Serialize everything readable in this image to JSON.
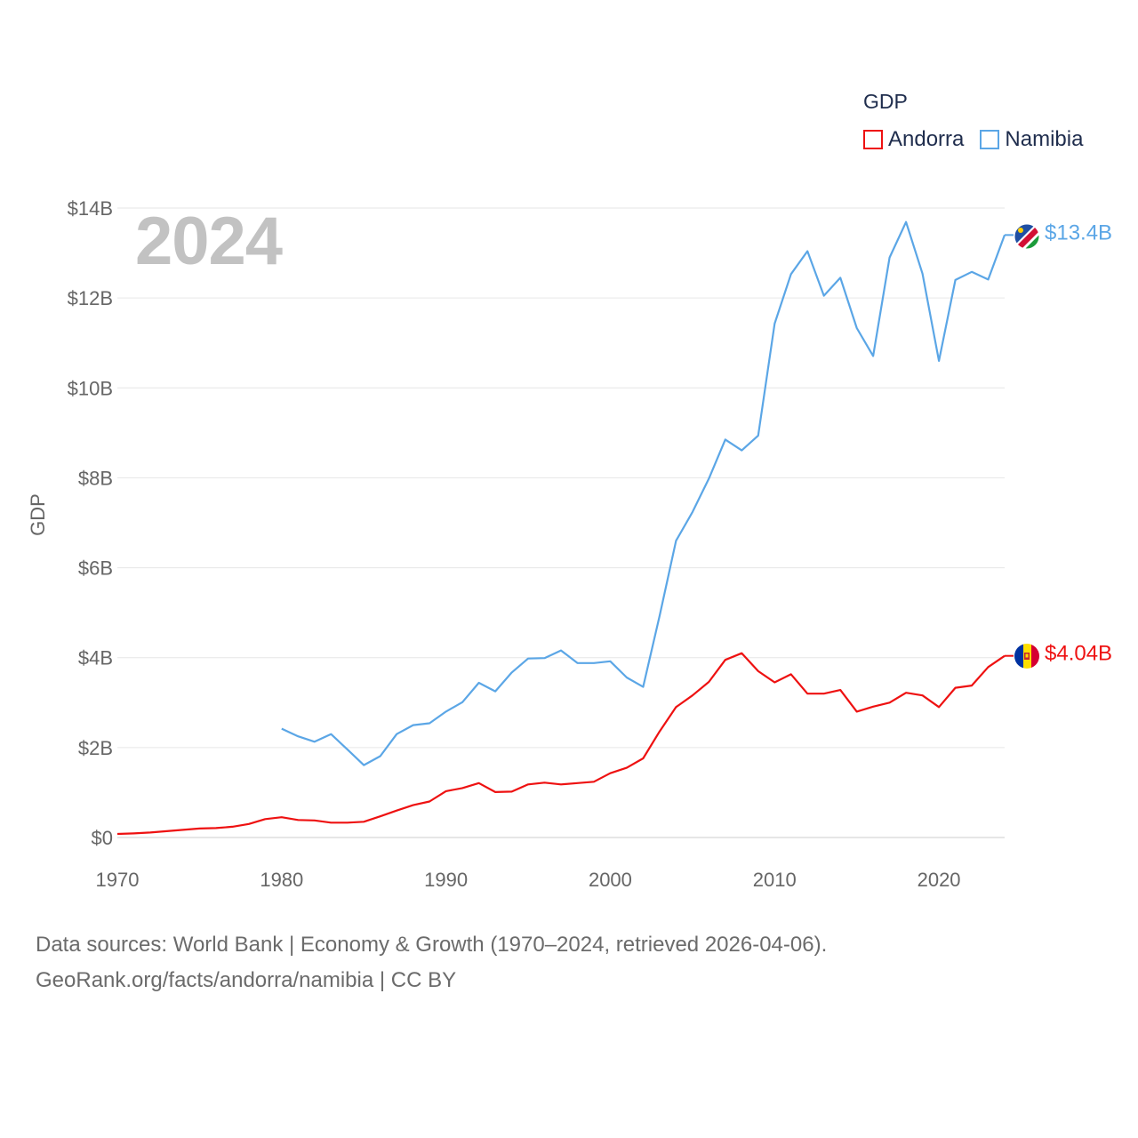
{
  "legend": {
    "title": "GDP",
    "items": [
      {
        "label": "Andorra",
        "color": "#ee1111"
      },
      {
        "label": "Namibia",
        "color": "#5ba6e6"
      }
    ]
  },
  "year_label": "2024",
  "footer": {
    "line1": "Data sources: World Bank | Economy & Growth (1970–2024, retrieved 2026-04-06).",
    "line2": "GeoRank.org/facts/andorra/namibia | CC BY"
  },
  "chart_data": {
    "type": "line",
    "title": "",
    "xlabel": "",
    "ylabel": "GDP",
    "xlim": [
      1970,
      2024
    ],
    "ylim": [
      0,
      14
    ],
    "y_unit": "billion USD",
    "x_ticks": [
      "1970",
      "1980",
      "1990",
      "2000",
      "2010",
      "2020"
    ],
    "x_tick_values": [
      1970,
      1980,
      1990,
      2000,
      2010,
      2020
    ],
    "y_ticks": [
      "$0",
      "$2B",
      "$4B",
      "$6B",
      "$8B",
      "$10B",
      "$12B",
      "$14B"
    ],
    "y_tick_values": [
      0,
      2,
      4,
      6,
      8,
      10,
      12,
      14
    ],
    "grid": true,
    "legend_position": "top-right",
    "series": [
      {
        "name": "Andorra",
        "color": "#ee1111",
        "end_label": "$4.04B",
        "x": [
          1970,
          1971,
          1972,
          1973,
          1974,
          1975,
          1976,
          1977,
          1978,
          1979,
          1980,
          1981,
          1982,
          1983,
          1984,
          1985,
          1986,
          1987,
          1988,
          1989,
          1990,
          1991,
          1992,
          1993,
          1994,
          1995,
          1996,
          1997,
          1998,
          1999,
          2000,
          2001,
          2002,
          2003,
          2004,
          2005,
          2006,
          2007,
          2008,
          2009,
          2010,
          2011,
          2012,
          2013,
          2014,
          2015,
          2016,
          2017,
          2018,
          2019,
          2020,
          2021,
          2022,
          2023,
          2024
        ],
        "values": [
          0.08,
          0.09,
          0.11,
          0.14,
          0.17,
          0.2,
          0.21,
          0.24,
          0.3,
          0.41,
          0.45,
          0.39,
          0.38,
          0.33,
          0.33,
          0.35,
          0.47,
          0.6,
          0.72,
          0.8,
          1.03,
          1.1,
          1.21,
          1.01,
          1.02,
          1.18,
          1.22,
          1.18,
          1.21,
          1.24,
          1.43,
          1.55,
          1.76,
          2.36,
          2.9,
          3.16,
          3.46,
          3.95,
          4.1,
          3.7,
          3.45,
          3.63,
          3.2,
          3.2,
          3.28,
          2.8,
          2.91,
          3.0,
          3.22,
          3.16,
          2.9,
          3.33,
          3.38,
          3.79,
          4.04
        ]
      },
      {
        "name": "Namibia",
        "color": "#5ba6e6",
        "end_label": "$13.4B",
        "x": [
          1980,
          1981,
          1982,
          1983,
          1984,
          1985,
          1986,
          1987,
          1988,
          1989,
          1990,
          1991,
          1992,
          1993,
          1994,
          1995,
          1996,
          1997,
          1998,
          1999,
          2000,
          2001,
          2002,
          2003,
          2004,
          2005,
          2006,
          2007,
          2008,
          2009,
          2010,
          2011,
          2012,
          2013,
          2014,
          2015,
          2016,
          2017,
          2018,
          2019,
          2020,
          2021,
          2022,
          2023,
          2024
        ],
        "values": [
          2.42,
          2.25,
          2.13,
          2.3,
          1.96,
          1.61,
          1.81,
          2.3,
          2.5,
          2.54,
          2.8,
          3.01,
          3.44,
          3.25,
          3.67,
          3.98,
          3.99,
          4.16,
          3.88,
          3.88,
          3.92,
          3.56,
          3.35,
          4.93,
          6.6,
          7.24,
          7.98,
          8.85,
          8.61,
          8.94,
          11.43,
          12.53,
          13.04,
          12.05,
          12.45,
          11.33,
          10.71,
          12.9,
          13.69,
          12.54,
          10.6,
          12.4,
          12.58,
          12.41,
          13.4
        ]
      }
    ]
  }
}
